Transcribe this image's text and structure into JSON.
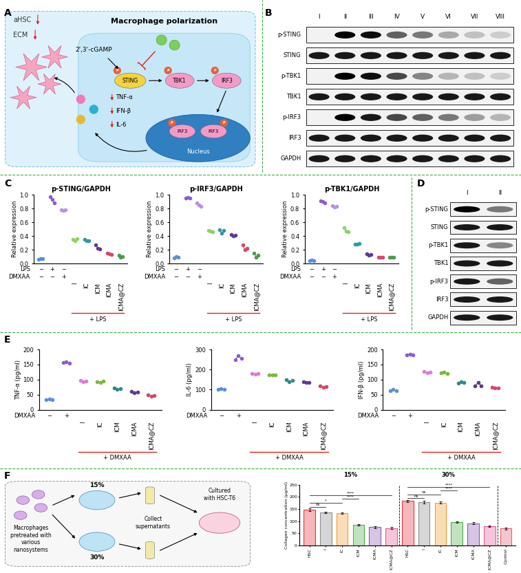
{
  "panel_labels": [
    "A",
    "B",
    "C",
    "D",
    "E",
    "F"
  ],
  "diagram_A": {
    "title": "Macrophage polarization",
    "hsc_labels": [
      "aHSC",
      "ECM"
    ],
    "ligand": "2',3'-cGAMP",
    "pathway": [
      "STING",
      "TBK1",
      "IRF3"
    ],
    "phospho_mark": "P",
    "nucleus": "Nucleus",
    "cytokines": [
      "TNF-α",
      "IFN-β",
      "IL-6"
    ]
  },
  "blot_B": {
    "lanes": [
      "I",
      "II",
      "III",
      "IV",
      "V",
      "VI",
      "VII",
      "VIII"
    ],
    "rows": [
      {
        "label": "p-STING",
        "band_intensity": [
          0.0,
          1.0,
          0.95,
          0.6,
          0.5,
          0.3,
          0.2,
          0.15
        ]
      },
      {
        "label": "STING",
        "band_intensity": [
          0.9,
          0.9,
          0.9,
          0.9,
          0.9,
          0.9,
          0.9,
          0.9
        ]
      },
      {
        "label": "p-TBK1",
        "band_intensity": [
          0.0,
          1.0,
          0.95,
          0.7,
          0.45,
          0.25,
          0.2,
          0.15
        ]
      },
      {
        "label": "TBK1",
        "band_intensity": [
          0.9,
          0.9,
          0.9,
          0.9,
          0.9,
          0.9,
          0.9,
          0.9
        ]
      },
      {
        "label": "p-IRF3",
        "band_intensity": [
          0.0,
          1.0,
          0.9,
          0.7,
          0.6,
          0.5,
          0.35,
          0.25
        ]
      },
      {
        "label": "IRF3",
        "band_intensity": [
          0.9,
          0.9,
          0.9,
          0.9,
          0.9,
          0.9,
          0.9,
          0.9
        ]
      },
      {
        "label": "GAPDH",
        "band_intensity": [
          0.9,
          0.9,
          0.9,
          0.9,
          0.9,
          0.9,
          0.9,
          0.9
        ]
      }
    ]
  },
  "blot_D": {
    "lanes": [
      "I",
      "II"
    ],
    "rows": [
      {
        "label": "p-STING",
        "band_intensity": [
          1.0,
          0.5
        ]
      },
      {
        "label": "STING",
        "band_intensity": [
          0.9,
          0.9
        ]
      },
      {
        "label": "p-TBK1",
        "band_intensity": [
          0.9,
          0.45
        ]
      },
      {
        "label": "TBK1",
        "band_intensity": [
          0.9,
          0.9
        ]
      },
      {
        "label": "p-IRF3",
        "band_intensity": [
          0.9,
          0.6
        ]
      },
      {
        "label": "IRF3",
        "band_intensity": [
          0.9,
          0.9
        ]
      },
      {
        "label": "GAPDH",
        "band_intensity": [
          0.9,
          0.9
        ]
      }
    ]
  },
  "diagram_F": {
    "percentages": [
      "15%",
      "30%"
    ],
    "source": "Macrophages pretreated with various nanosystems",
    "step": "Collect supernatants",
    "target": "Cultured with HSC-T6"
  },
  "chart_data": [
    {
      "type": "dot",
      "title": "p-STING/GAPDH",
      "y_label": "Relative expression",
      "categories": [
        null,
        null,
        null,
        "I",
        "IC",
        "ICM",
        "ICMA",
        "ICMA@CZ"
      ],
      "values": [
        [
          0.06,
          0.07,
          0.07
        ],
        [
          0.97,
          0.93,
          0.88
        ],
        [
          0.78,
          0.77,
          0.78
        ],
        [
          0.35,
          0.33,
          0.36
        ],
        [
          0.35,
          0.33,
          0.33
        ],
        [
          0.27,
          0.22,
          0.21
        ],
        [
          0.15,
          0.14,
          0.13
        ],
        [
          0.12,
          0.09,
          0.1
        ]
      ],
      "colors": [
        "#5b8fd9",
        "#8e5bd6",
        "#b990e8",
        "#8fd16a",
        "#2e9aa0",
        "#5e3a90",
        "#d8466a",
        "#4c9a4c"
      ],
      "condition_rows": [
        {
          "name": "LPS",
          "signs": [
            "−",
            "+",
            "−",
            null,
            null,
            null,
            null,
            null
          ]
        },
        {
          "name": "DMXAA",
          "signs": [
            "−",
            "−",
            "+",
            null,
            null,
            null,
            null,
            null
          ]
        }
      ],
      "bracket_label": "+ LPS",
      "ylim": [
        0.0,
        1.0
      ],
      "yticks": [
        0.0,
        0.2,
        0.4,
        0.6,
        0.8,
        1.0
      ]
    },
    {
      "type": "dot",
      "title": "p-IRF3/GAPDH",
      "y_label": "Relative expression",
      "categories": [
        null,
        null,
        null,
        "I",
        "IC",
        "ICM",
        "ICMA",
        "ICMA@CZ"
      ],
      "values": [
        [
          0.08,
          0.1,
          0.09
        ],
        [
          0.95,
          0.96,
          0.95
        ],
        [
          0.88,
          0.85,
          0.83
        ],
        [
          0.48,
          0.47,
          0.46
        ],
        [
          0.49,
          0.44,
          0.48
        ],
        [
          0.42,
          0.4,
          0.41
        ],
        [
          0.27,
          0.2,
          0.22
        ],
        [
          0.15,
          0.09,
          0.12
        ]
      ],
      "colors": [
        "#5b8fd9",
        "#8e5bd6",
        "#b990e8",
        "#8fd16a",
        "#2e9aa0",
        "#5e3a90",
        "#d8466a",
        "#4c9a4c"
      ],
      "condition_rows": [
        {
          "name": "LPS",
          "signs": [
            "−",
            "+",
            "−",
            null,
            null,
            null,
            null,
            null
          ]
        },
        {
          "name": "DMXAA",
          "signs": [
            "−",
            "−",
            "+",
            null,
            null,
            null,
            null,
            null
          ]
        }
      ],
      "bracket_label": "+ LPS",
      "ylim": [
        0.0,
        1.0
      ],
      "yticks": [
        0.0,
        0.2,
        0.4,
        0.6,
        0.8,
        1.0
      ]
    },
    {
      "type": "dot",
      "title": "p-TBK1/GAPDH",
      "y_label": "Relative expression",
      "categories": [
        null,
        null,
        null,
        "I",
        "IC",
        "ICM",
        "ICMA",
        "ICMA@CZ"
      ],
      "values": [
        [
          0.04,
          0.05,
          0.04
        ],
        [
          0.91,
          0.9,
          0.88
        ],
        [
          0.84,
          0.82,
          0.83
        ],
        [
          0.52,
          0.47,
          0.46
        ],
        [
          0.28,
          0.28,
          0.29
        ],
        [
          0.14,
          0.12,
          0.13
        ],
        [
          0.09,
          0.09,
          0.09
        ],
        [
          0.09,
          0.09,
          0.09
        ]
      ],
      "colors": [
        "#5b8fd9",
        "#8e5bd6",
        "#b990e8",
        "#8fd16a",
        "#2e9aa0",
        "#5e3a90",
        "#d8466a",
        "#4c9a4c"
      ],
      "condition_rows": [
        {
          "name": "LPS",
          "signs": [
            "−",
            "+",
            "−",
            null,
            null,
            null,
            null,
            null
          ]
        },
        {
          "name": "DMXAA",
          "signs": [
            "−",
            "−",
            "+",
            null,
            null,
            null,
            null,
            null
          ]
        }
      ],
      "bracket_label": "+ LPS",
      "ylim": [
        0.0,
        1.0
      ],
      "yticks": [
        0.0,
        0.2,
        0.4,
        0.6,
        0.8,
        1.0
      ]
    },
    {
      "type": "dot",
      "y_label": "TNF-α (pg/ml)",
      "categories": [
        null,
        null,
        "I",
        "IC",
        "ICM",
        "ICMA",
        "ICMA@CZ"
      ],
      "values": [
        [
          33,
          35,
          34
        ],
        [
          157,
          158,
          155
        ],
        [
          98,
          93,
          95
        ],
        [
          93,
          91,
          95
        ],
        [
          73,
          68,
          70
        ],
        [
          60,
          57,
          58
        ],
        [
          50,
          45,
          48
        ]
      ],
      "colors": [
        "#5b8fd9",
        "#8e5bd6",
        "#e07ad8",
        "#7ab83a",
        "#2e8a8a",
        "#5e3a90",
        "#d8466a"
      ],
      "condition_rows": [
        {
          "name": "DMXAA",
          "signs": [
            "−",
            "+",
            null,
            null,
            null,
            null,
            null
          ]
        }
      ],
      "bracket_label": "+ DMXAA",
      "ylim": [
        0,
        200
      ],
      "yticks": [
        0,
        50,
        100,
        150,
        200
      ]
    },
    {
      "type": "dot",
      "y_label": "IL-6 (pg/ml)",
      "categories": [
        null,
        null,
        "I",
        "IC",
        "ICM",
        "ICMA",
        "ICMA@CZ"
      ],
      "values": [
        [
          102,
          106,
          100
        ],
        [
          250,
          268,
          255
        ],
        [
          182,
          178,
          180
        ],
        [
          175,
          172,
          173
        ],
        [
          150,
          140,
          145
        ],
        [
          140,
          135,
          137
        ],
        [
          120,
          112,
          115
        ]
      ],
      "colors": [
        "#5b8fd9",
        "#8e5bd6",
        "#e07ad8",
        "#7ab83a",
        "#2e8a8a",
        "#5e3a90",
        "#d8466a"
      ],
      "condition_rows": [
        {
          "name": "DMXAA",
          "signs": [
            "−",
            "+",
            null,
            null,
            null,
            null,
            null
          ]
        }
      ],
      "bracket_label": "+ DMXAA",
      "ylim": [
        0,
        300
      ],
      "yticks": [
        0,
        100,
        200,
        300
      ]
    },
    {
      "type": "dot",
      "y_label": "IFN-β (pg/ml)",
      "categories": [
        null,
        null,
        "I",
        "IC",
        "ICM",
        "ICMA",
        "ICMA@CZ"
      ],
      "values": [
        [
          63,
          67,
          64
        ],
        [
          183,
          185,
          183
        ],
        [
          128,
          122,
          125
        ],
        [
          122,
          124,
          120
        ],
        [
          88,
          92,
          90
        ],
        [
          80,
          90,
          78
        ],
        [
          75,
          72,
          73
        ]
      ],
      "colors": [
        "#5b8fd9",
        "#8e5bd6",
        "#e07ad8",
        "#7ab83a",
        "#2e8a8a",
        "#5e3a90",
        "#d8466a"
      ],
      "condition_rows": [
        {
          "name": "DMXAA",
          "signs": [
            "−",
            "+",
            null,
            null,
            null,
            null,
            null
          ]
        }
      ],
      "bracket_label": "+ DMXAA",
      "ylim": [
        0,
        200
      ],
      "yticks": [
        0,
        50,
        100,
        150,
        200
      ]
    },
    {
      "type": "bar",
      "y_label": "Collagen concentration (μg/ml)",
      "categories": [
        "HSC",
        "I",
        "IC",
        "ICM",
        "ICMA",
        "ICMA@CZ",
        "HSC",
        "I",
        "IC",
        "ICM",
        "ICMA",
        "ICMA@CZ",
        "Control"
      ],
      "values": [
        148,
        137,
        134,
        86,
        76,
        72,
        183,
        178,
        177,
        96,
        92,
        80,
        70
      ],
      "errors": [
        6,
        3,
        3,
        3,
        4,
        4,
        5,
        5,
        5,
        3,
        3,
        3,
        5
      ],
      "colors": [
        "#e8333c",
        "#8c8c8c",
        "#f0a030",
        "#4cae4c",
        "#8a5ab0",
        "#e05a9a",
        "#e8333c",
        "#8c8c8c",
        "#f0a030",
        "#4cae4c",
        "#8a5ab0",
        "#e05a9a",
        "#e06070"
      ],
      "groups": [
        {
          "label": "15%",
          "from": 0,
          "to": 5,
          "comparisons": [
            {
              "from": 0,
              "to": 1,
              "label": "ns"
            },
            {
              "from": 0,
              "to": 2,
              "label": "*"
            },
            {
              "from": 2,
              "to": 3,
              "label": "****"
            },
            {
              "from": 0,
              "to": 5,
              "label": "****"
            }
          ]
        },
        {
          "label": "30%",
          "from": 6,
          "to": 11,
          "comparisons": [
            {
              "from": 6,
              "to": 7,
              "label": "ns"
            },
            {
              "from": 6,
              "to": 8,
              "label": "ns"
            },
            {
              "from": 8,
              "to": 9,
              "label": "****"
            },
            {
              "from": 6,
              "to": 11,
              "label": "****"
            }
          ]
        }
      ],
      "ylim": [
        0,
        250
      ],
      "yticks": [
        0,
        50,
        100,
        150,
        200,
        250
      ]
    }
  ]
}
